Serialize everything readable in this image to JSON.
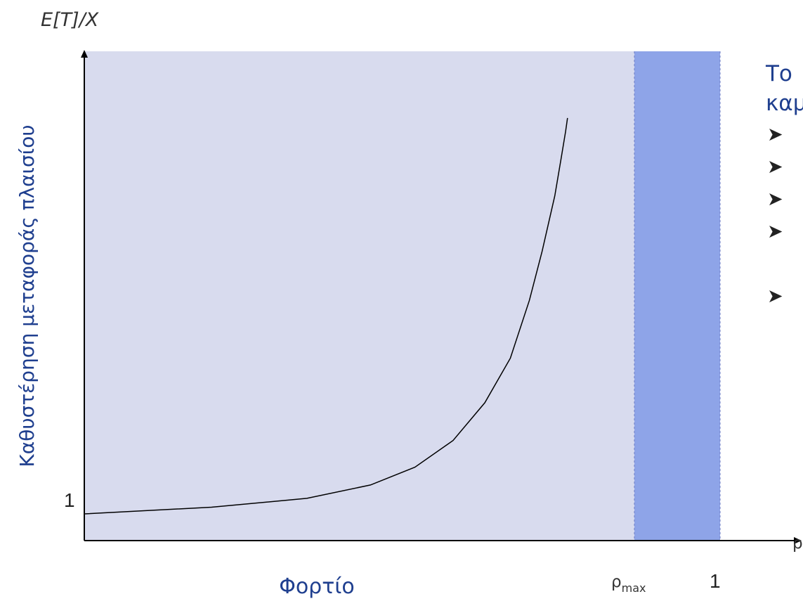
{
  "chart_data": {
    "type": "line",
    "ylabel_top": "E[T]/X",
    "ylabel": "Καθυστέρηση μεταφοράς πλαισίου",
    "xlabel": "Φορτίο",
    "x_axis_symbol": "ρ",
    "y_tick_label": "1",
    "x_tick_labels": [
      "ρmax",
      "1"
    ],
    "series": [
      {
        "x": [
          0.0,
          0.2,
          0.35,
          0.45,
          0.52,
          0.58,
          0.63,
          0.67,
          0.7,
          0.72,
          0.74,
          0.75,
          0.757,
          0.76
        ],
        "y": [
          0.12,
          0.15,
          0.19,
          0.25,
          0.33,
          0.45,
          0.62,
          0.82,
          1.08,
          1.3,
          1.55,
          1.72,
          1.84,
          1.9
        ]
      }
    ],
    "xlim": [
      0,
      1
    ],
    "ylim": [
      0,
      2.2
    ],
    "region_max": 0.873,
    "colors": {
      "plot_bg": "#d8dbee",
      "band": "#8ea4e8",
      "axis": "#000000",
      "curve": "#000000",
      "greek_text": "#1f3f8f"
    }
  },
  "side_panel": {
    "heading_line1": "Το",
    "heading_line2": "καμ",
    "bullets": [
      "➤",
      "➤",
      "➤",
      "➤",
      "➤"
    ]
  }
}
